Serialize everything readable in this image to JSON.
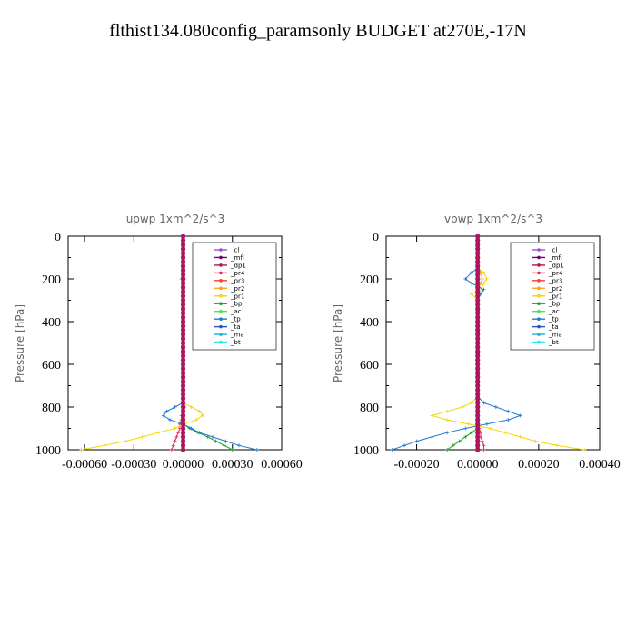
{
  "figure_title": "flthist134.080config_paramsonly  BUDGET at270E,-17N",
  "chart_data": [
    {
      "type": "line",
      "title": "upwp   1xm^2/s^3",
      "ylabel": "Pressure [hPa]",
      "ylim": [
        1000,
        0
      ],
      "xlim": [
        -0.0007,
        0.0006
      ],
      "xticks": [
        "-0.00060",
        "-0.00030",
        "0.00000",
        "0.00030",
        "0.00060"
      ],
      "xtick_values": [
        -0.0006,
        -0.0003,
        0,
        0.0003,
        0.0006
      ],
      "yticks": [
        "0",
        "200",
        "400",
        "600",
        "800",
        "1000"
      ],
      "legend_position": "top-right",
      "pressure": [
        0,
        50,
        100,
        150,
        200,
        250,
        300,
        350,
        400,
        450,
        500,
        550,
        600,
        650,
        700,
        750,
        780,
        800,
        820,
        840,
        860,
        880,
        900,
        920,
        940,
        960,
        980,
        1000
      ],
      "series": [
        {
          "name": "_cl",
          "color": "#9a4fcf",
          "values": [
            0,
            0,
            0,
            0,
            0,
            0,
            0,
            0,
            0,
            0,
            0,
            0,
            0,
            0,
            0,
            0,
            0,
            0,
            0,
            0,
            0,
            0,
            0,
            0,
            0,
            0,
            0,
            0
          ]
        },
        {
          "name": "_mfl",
          "color": "#7a0077",
          "values": [
            0,
            0,
            0,
            0,
            0,
            0,
            0,
            0,
            0,
            0,
            0,
            0,
            0,
            0,
            0,
            0,
            0,
            0,
            0,
            0,
            0,
            0,
            0,
            0,
            0,
            0,
            0,
            0
          ]
        },
        {
          "name": "_dp1",
          "color": "#b0145a",
          "values": [
            0,
            0,
            0,
            0,
            0,
            0,
            0,
            0,
            0,
            0,
            0,
            0,
            0,
            0,
            0,
            0,
            0,
            0,
            0,
            0,
            0,
            0,
            0,
            0,
            0,
            0,
            0,
            0
          ]
        },
        {
          "name": "_pr4",
          "color": "#e8285a",
          "values": [
            0,
            0,
            0,
            0,
            0,
            0,
            0,
            0,
            0,
            0,
            0,
            0,
            0,
            0,
            0,
            0,
            0,
            1e-05,
            0,
            -1e-05,
            -1e-05,
            -2e-05,
            -2e-05,
            -3e-05,
            -4e-05,
            -5e-05,
            -6e-05,
            -7e-05
          ]
        },
        {
          "name": "_pr3",
          "color": "#ff3c28",
          "values": [
            0,
            0,
            0,
            0,
            0,
            0,
            0,
            0,
            0,
            0,
            0,
            0,
            0,
            0,
            0,
            0,
            0,
            0,
            0,
            0,
            0,
            0,
            0,
            0,
            0,
            0,
            0,
            0
          ]
        },
        {
          "name": "_pr2",
          "color": "#ffa020",
          "values": [
            0,
            0,
            0,
            0,
            1e-05,
            0,
            0,
            0,
            0,
            0,
            0,
            0,
            0,
            0,
            0,
            0,
            0,
            0,
            0,
            0,
            0,
            0,
            0,
            0,
            0,
            0,
            0,
            0
          ]
        },
        {
          "name": "_pr1",
          "color": "#f5d800",
          "values": [
            0,
            0,
            0,
            0,
            0,
            0,
            0,
            0,
            0,
            0,
            0,
            0,
            0,
            0,
            0,
            0,
            0,
            5e-05,
            0.0001,
            0.00012,
            8e-05,
            0,
            -5e-05,
            -0.00015,
            -0.00025,
            -0.00035,
            -0.00048,
            -0.00062
          ]
        },
        {
          "name": "_bp",
          "color": "#1aa41a",
          "values": [
            0,
            0,
            0,
            0,
            0,
            0,
            0,
            0,
            0,
            0,
            0,
            0,
            0,
            0,
            0,
            0,
            0,
            0,
            0,
            0,
            0,
            0,
            4e-05,
            9e-05,
            0.00015,
            0.0002,
            0.00025,
            0.0003
          ]
        },
        {
          "name": "_ac",
          "color": "#50e050",
          "values": [
            0,
            0,
            0,
            0,
            0,
            0,
            0,
            0,
            0,
            0,
            0,
            0,
            0,
            0,
            0,
            0,
            0,
            0,
            0,
            0,
            0,
            0,
            0,
            0,
            0,
            0,
            0,
            0
          ]
        },
        {
          "name": "_tp",
          "color": "#1e78d2",
          "values": [
            0,
            0,
            0,
            0,
            -1e-05,
            0,
            0,
            0,
            0,
            0,
            0,
            0,
            0,
            0,
            0,
            0,
            0,
            -5e-05,
            -0.0001,
            -0.00012,
            -8e-05,
            0,
            5e-05,
            0.0001,
            0.00018,
            0.00026,
            0.00034,
            0.00045
          ]
        },
        {
          "name": "_ta",
          "color": "#2850c8",
          "values": [
            0,
            0,
            0,
            0,
            0,
            0,
            0,
            0,
            0,
            0,
            0,
            0,
            0,
            0,
            0,
            0,
            0,
            0,
            0,
            0,
            0,
            0,
            0,
            0,
            0,
            0,
            0,
            0
          ]
        },
        {
          "name": "_ma",
          "color": "#20b4dc",
          "values": [
            0,
            0,
            0,
            0,
            0,
            0,
            0,
            0,
            0,
            0,
            0,
            0,
            0,
            0,
            0,
            0,
            0,
            0,
            0,
            0,
            0,
            0,
            0,
            0,
            0,
            0,
            0,
            0
          ]
        },
        {
          "name": "_bt",
          "color": "#28e8e8",
          "values": [
            0,
            0,
            0,
            0,
            0,
            0,
            0,
            0,
            0,
            0,
            0,
            0,
            0,
            0,
            0,
            0,
            0,
            0,
            0,
            0,
            0,
            0,
            0,
            0,
            0,
            0,
            0,
            0
          ]
        }
      ]
    },
    {
      "type": "line",
      "title": "vpwp   1xm^2/s^3",
      "ylabel": "Pressure [hPa]",
      "ylim": [
        1000,
        0
      ],
      "xlim": [
        -0.0003,
        0.0004
      ],
      "xticks": [
        "-0.00020",
        "0.00000",
        "0.00020",
        "0.00040"
      ],
      "xtick_values": [
        -0.0002,
        0,
        0.0002,
        0.0004
      ],
      "yticks": [
        "0",
        "200",
        "400",
        "600",
        "800",
        "1000"
      ],
      "legend_position": "top-right",
      "pressure": [
        0,
        50,
        100,
        150,
        170,
        200,
        220,
        250,
        270,
        300,
        350,
        400,
        450,
        500,
        550,
        600,
        650,
        700,
        750,
        780,
        800,
        820,
        840,
        860,
        880,
        900,
        920,
        940,
        960,
        980,
        1000
      ],
      "series": [
        {
          "name": "_cl",
          "color": "#9a4fcf",
          "values": [
            0,
            0,
            0,
            0,
            0,
            0,
            0,
            0,
            0,
            0,
            0,
            0,
            0,
            0,
            0,
            0,
            0,
            0,
            0,
            0,
            0,
            0,
            0,
            0,
            0,
            0,
            0,
            0,
            0,
            0,
            0
          ]
        },
        {
          "name": "_mfl",
          "color": "#7a0077",
          "values": [
            0,
            0,
            0,
            0,
            0,
            0,
            0,
            0,
            0,
            0,
            0,
            0,
            0,
            0,
            0,
            0,
            0,
            0,
            0,
            0,
            0,
            0,
            0,
            0,
            0,
            0,
            0,
            0,
            0,
            0,
            0
          ]
        },
        {
          "name": "_dp1",
          "color": "#b0145a",
          "values": [
            0,
            0,
            0,
            0,
            0,
            0,
            0,
            0,
            0,
            0,
            0,
            0,
            0,
            0,
            0,
            0,
            0,
            0,
            0,
            0,
            0,
            0,
            0,
            0,
            0,
            0,
            0,
            0,
            0,
            0,
            0
          ]
        },
        {
          "name": "_pr4",
          "color": "#e8285a",
          "values": [
            0,
            0,
            0,
            0,
            0,
            0,
            0,
            0,
            0,
            0,
            0,
            0,
            0,
            0,
            0,
            0,
            0,
            0,
            0,
            0,
            0,
            0,
            0,
            0,
            0,
            5e-06,
            1e-05,
            1e-05,
            1.5e-05,
            2e-05,
            2e-05
          ]
        },
        {
          "name": "_pr3",
          "color": "#ff3c28",
          "values": [
            0,
            0,
            0,
            0,
            0,
            0,
            0,
            0,
            0,
            0,
            0,
            0,
            0,
            0,
            0,
            0,
            0,
            0,
            0,
            0,
            0,
            0,
            0,
            0,
            0,
            0,
            0,
            0,
            0,
            0,
            0
          ]
        },
        {
          "name": "_pr2",
          "color": "#ffa020",
          "values": [
            0,
            0,
            0,
            0,
            1e-05,
            1.5e-05,
            1e-05,
            0,
            0,
            0,
            0,
            0,
            0,
            0,
            0,
            0,
            0,
            0,
            0,
            0,
            0,
            0,
            0,
            0,
            0,
            0,
            0,
            0,
            0,
            0,
            0
          ]
        },
        {
          "name": "_pr1",
          "color": "#f5d800",
          "values": [
            0,
            0,
            0,
            0,
            2e-05,
            3e-05,
            2e-05,
            1e-05,
            -2e-05,
            0,
            0,
            0,
            0,
            0,
            0,
            0,
            0,
            0,
            0,
            -2e-05,
            -5e-05,
            -0.0001,
            -0.00015,
            -0.0001,
            -3e-05,
            4e-05,
            9e-05,
            0.00014,
            0.00019,
            0.00026,
            0.00035
          ]
        },
        {
          "name": "_bp",
          "color": "#1aa41a",
          "values": [
            0,
            0,
            0,
            0,
            0,
            0,
            0,
            0,
            0,
            0,
            0,
            0,
            0,
            0,
            0,
            0,
            0,
            0,
            0,
            0,
            0,
            0,
            0,
            0,
            0,
            0,
            -2e-05,
            -4e-05,
            -6e-05,
            -8e-05,
            -0.0001
          ]
        },
        {
          "name": "_ac",
          "color": "#50e050",
          "values": [
            0,
            0,
            0,
            0,
            0,
            0,
            0,
            0,
            0,
            0,
            0,
            0,
            0,
            0,
            0,
            0,
            0,
            0,
            0,
            0,
            0,
            0,
            0,
            0,
            0,
            0,
            0,
            0,
            0,
            0,
            0
          ]
        },
        {
          "name": "_tp",
          "color": "#1e78d2",
          "values": [
            0,
            0,
            0,
            0,
            -2e-05,
            -4e-05,
            -2e-05,
            2e-05,
            1e-05,
            0,
            0,
            0,
            0,
            0,
            0,
            0,
            0,
            0,
            0,
            2e-05,
            6e-05,
            0.0001,
            0.00014,
            0.0001,
            3e-05,
            -4e-05,
            -0.0001,
            -0.00015,
            -0.0002,
            -0.00024,
            -0.00028
          ]
        },
        {
          "name": "_ta",
          "color": "#2850c8",
          "values": [
            0,
            0,
            0,
            0,
            0,
            0,
            0,
            0,
            0,
            0,
            0,
            0,
            0,
            0,
            0,
            0,
            0,
            0,
            0,
            0,
            0,
            0,
            0,
            0,
            0,
            0,
            0,
            0,
            0,
            0,
            0
          ]
        },
        {
          "name": "_ma",
          "color": "#20b4dc",
          "values": [
            0,
            0,
            0,
            0,
            0,
            0,
            0,
            0,
            0,
            0,
            0,
            0,
            0,
            0,
            0,
            0,
            0,
            0,
            0,
            0,
            0,
            0,
            0,
            0,
            0,
            0,
            0,
            0,
            0,
            0,
            0
          ]
        },
        {
          "name": "_bt",
          "color": "#28e8e8",
          "values": [
            0,
            0,
            0,
            0,
            0,
            0,
            0,
            0,
            0,
            0,
            0,
            0,
            0,
            0,
            0,
            0,
            0,
            0,
            0,
            0,
            0,
            0,
            0,
            0,
            0,
            0,
            0,
            0,
            0,
            0,
            0
          ]
        }
      ]
    }
  ]
}
